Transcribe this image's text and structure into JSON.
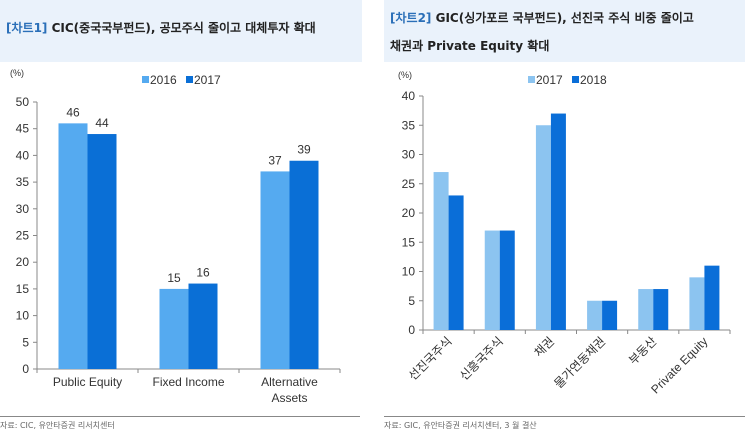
{
  "charts_header": [
    {
      "tag": "[차트1]",
      "title": "CIC(중국국부펀드), 공모주식 줄이고 대체투자 확대"
    },
    {
      "tag": "[차트2]",
      "title": "GIC(싱가포르 국부펀드), 선진국 주식 비중 줄이고",
      "title_line2": "채권과 Private Equity 확대"
    }
  ],
  "footers": [
    "자료: CIC, 유안타증권 리서치센터",
    "자료: GIC, 유안타증권 리서치센터, 3 월 결산"
  ],
  "chart_data": [
    {
      "type": "bar",
      "ylabel": "(%)",
      "ylim": [
        0,
        50
      ],
      "yticks": [
        0,
        5,
        10,
        15,
        20,
        25,
        30,
        35,
        40,
        45,
        50
      ],
      "categories": [
        "Public Equity",
        "Fixed Income",
        "Alternative Assets"
      ],
      "series": [
        {
          "name": "2016",
          "values": [
            46,
            15,
            37
          ],
          "color": "#55aaf0"
        },
        {
          "name": "2017",
          "values": [
            44,
            16,
            39
          ],
          "color": "#0a6fd6"
        }
      ],
      "data_labels": true,
      "legend": "top-center",
      "grid": false
    },
    {
      "type": "bar",
      "ylabel": "(%)",
      "ylim": [
        0,
        40
      ],
      "yticks": [
        0,
        5,
        10,
        15,
        20,
        25,
        30,
        35,
        40
      ],
      "categories": [
        "선진국주식",
        "신흥국주식",
        "채권",
        "물가연동채권",
        "부동산",
        "Private Equity"
      ],
      "series": [
        {
          "name": "2017",
          "values": [
            27,
            17,
            35,
            5,
            7,
            9
          ],
          "color": "#8cc4f0"
        },
        {
          "name": "2018",
          "values": [
            23,
            17,
            37,
            5,
            7,
            11
          ],
          "color": "#0a6ed8"
        }
      ],
      "data_labels": false,
      "legend": "top-center",
      "grid": false
    }
  ]
}
